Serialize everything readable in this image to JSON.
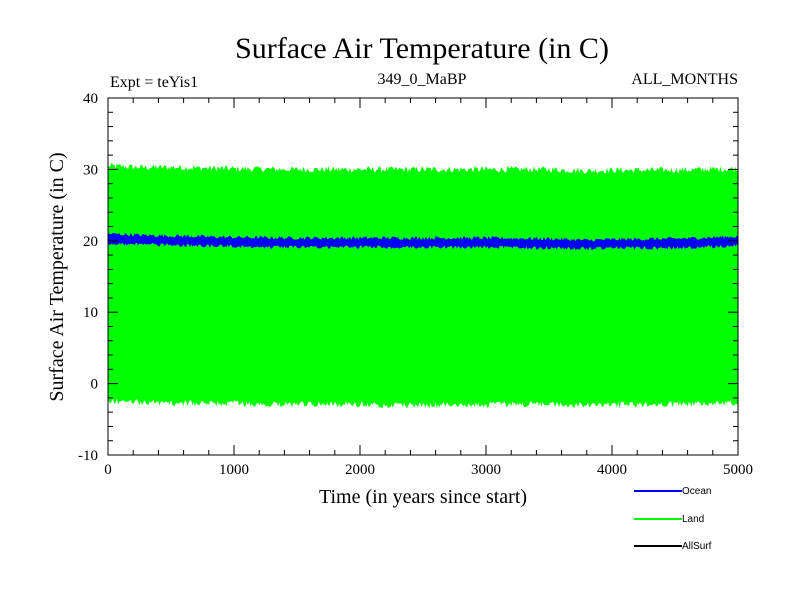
{
  "chart_data": {
    "type": "line",
    "title": "Surface Air Temperature (in C)",
    "subtitle_left": "Expt = teYis1",
    "subtitle_center": "349_0_MaBP",
    "subtitle_right": "ALL_MONTHS",
    "xlabel": "Time (in years since start)",
    "ylabel": "Surface Air Temperature (in C)",
    "xlim": [
      0,
      5000
    ],
    "ylim": [
      -10,
      40
    ],
    "xticks": [
      0,
      1000,
      2000,
      3000,
      4000,
      5000
    ],
    "yticks": [
      -10,
      0,
      10,
      20,
      30,
      40
    ],
    "xtick_labels": [
      "0",
      "1000",
      "2000",
      "3000",
      "4000",
      "5000"
    ],
    "ytick_labels": [
      "-10",
      "0",
      "10",
      "20",
      "30",
      "40"
    ],
    "legend_position": "bottom-right",
    "series": [
      {
        "name": "Land",
        "color": "#00ff00",
        "style": "band",
        "x": [
          0,
          250,
          500,
          750,
          1000,
          1500,
          2000,
          2500,
          3000,
          3500,
          3800,
          4000,
          4500,
          5000
        ],
        "upper": [
          30.5,
          30.3,
          30.3,
          30.2,
          30.1,
          30.0,
          30.0,
          30.0,
          30.0,
          30.0,
          29.8,
          29.9,
          29.9,
          30.1
        ],
        "lower": [
          -2.5,
          -2.6,
          -2.7,
          -2.8,
          -2.8,
          -2.9,
          -2.9,
          -3.0,
          -2.9,
          -2.9,
          -3.1,
          -3.0,
          -2.9,
          -2.7
        ]
      },
      {
        "name": "Ocean",
        "color": "#0000ff",
        "style": "band",
        "x": [
          0,
          250,
          500,
          750,
          1000,
          1500,
          2000,
          2500,
          3000,
          3500,
          3800,
          4000,
          4500,
          5000
        ],
        "upper": [
          21.0,
          20.8,
          20.7,
          20.6,
          20.5,
          20.4,
          20.4,
          20.4,
          20.4,
          20.3,
          20.1,
          20.2,
          20.3,
          20.6
        ],
        "lower": [
          19.6,
          19.5,
          19.4,
          19.3,
          19.2,
          19.1,
          19.1,
          19.1,
          19.1,
          19.0,
          18.9,
          19.0,
          19.0,
          19.3
        ]
      },
      {
        "name": "AllSurf",
        "color": "#000000",
        "style": "line",
        "x": [],
        "values": []
      }
    ]
  }
}
